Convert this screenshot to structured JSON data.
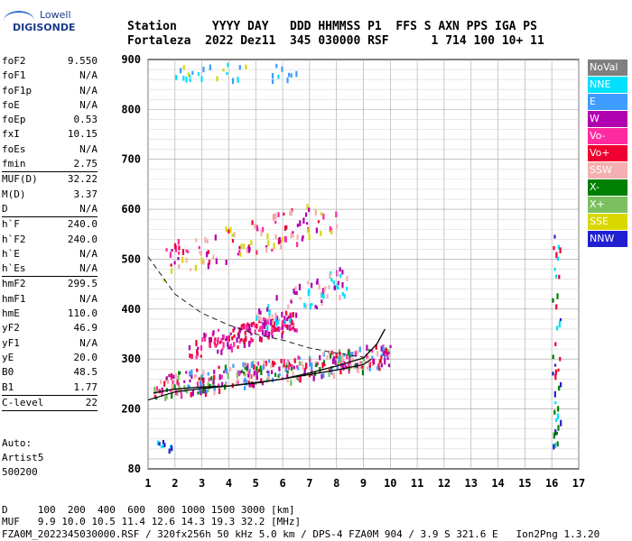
{
  "logo": {
    "line1": "Lowell",
    "line2": "DIGISONDE"
  },
  "header": {
    "row1": "Station     YYYY DAY   DDD HHMMSS P1  FFS S AXN PPS IGA PS",
    "row2": "Fortaleza  2022 Dez11  345 030000 RSF      1 714 100 10+ 11"
  },
  "params": [
    {
      "k": "foF2",
      "v": "9.550"
    },
    {
      "k": "foF1",
      "v": "N/A"
    },
    {
      "k": "foF1p",
      "v": "N/A"
    },
    {
      "k": "foE",
      "v": "N/A"
    },
    {
      "k": "foEp",
      "v": "0.53"
    },
    {
      "k": "fxI",
      "v": "10.15"
    },
    {
      "k": "foEs",
      "v": "N/A"
    },
    {
      "k": "fmin",
      "v": "2.75",
      "sep": true
    },
    {
      "k": "MUF(D)",
      "v": "32.22"
    },
    {
      "k": "M(D)",
      "v": "3.37"
    },
    {
      "k": "D",
      "v": "N/A",
      "sep": true
    },
    {
      "k": "h`F",
      "v": "240.0"
    },
    {
      "k": "h`F2",
      "v": "240.0"
    },
    {
      "k": "h`E",
      "v": "N/A"
    },
    {
      "k": "h`Es",
      "v": "N/A",
      "sep": true
    },
    {
      "k": "hmF2",
      "v": "299.5"
    },
    {
      "k": "hmF1",
      "v": "N/A"
    },
    {
      "k": "hmE",
      "v": "110.0"
    },
    {
      "k": "yF2",
      "v": "46.9"
    },
    {
      "k": "yF1",
      "v": "N/A"
    },
    {
      "k": "yE",
      "v": "20.0"
    },
    {
      "k": "B0",
      "v": "48.5"
    },
    {
      "k": "B1",
      "v": "1.77",
      "sep": true
    },
    {
      "k": "C-level",
      "v": "22",
      "sep": true
    }
  ],
  "tail": {
    "l1": "Auto:",
    "l2": "Artist5",
    "l3": "500200"
  },
  "legend": [
    {
      "label": "NoVal",
      "color": "#808080"
    },
    {
      "label": "NNE",
      "color": "#00e0ff"
    },
    {
      "label": "E",
      "color": "#3f9cff"
    },
    {
      "label": "W",
      "color": "#b000b0"
    },
    {
      "label": "Vo-",
      "color": "#ff2aa0"
    },
    {
      "label": "Vo+",
      "color": "#ee0030"
    },
    {
      "label": "SSW",
      "color": "#f4b0b0"
    },
    {
      "label": "X-",
      "color": "#008000"
    },
    {
      "label": "X+",
      "color": "#7bc060"
    },
    {
      "label": "SSE",
      "color": "#d8d800"
    },
    {
      "label": "NNW",
      "color": "#2020d0"
    }
  ],
  "bottom": {
    "b1": "D     100  200  400  600  800 1000 1500 3000 [km]",
    "b2": "MUF   9.9 10.0 10.5 11.4 12.6 14.3 19.3 32.2 [MHz]",
    "b3": "FZA0M_2022345030000.RSF / 320fx256h 50 kHz 5.0 km / DPS-4 FZA0M 904 / 3.9 S 321.6 E   Ion2Png 1.3.20"
  },
  "chart_data": {
    "type": "scatter",
    "xlim": [
      1,
      17
    ],
    "ylim": [
      80,
      900
    ],
    "x_ticks": [
      1,
      2,
      3,
      4,
      5,
      6,
      7,
      8,
      9,
      10,
      11,
      12,
      13,
      14,
      15,
      16,
      17
    ],
    "y_ticks": [
      80,
      200,
      300,
      400,
      500,
      600,
      700,
      800,
      900
    ],
    "grid": true,
    "trace_ordinary": [
      [
        1.2,
        232
      ],
      [
        2,
        240
      ],
      [
        3,
        244
      ],
      [
        4,
        246
      ],
      [
        5,
        252
      ],
      [
        6,
        260
      ],
      [
        7,
        272
      ],
      [
        8,
        286
      ],
      [
        9,
        302
      ],
      [
        9.5,
        330
      ],
      [
        9.8,
        360
      ]
    ],
    "profile_line": [
      [
        1.0,
        218
      ],
      [
        2,
        234
      ],
      [
        3,
        241
      ],
      [
        4,
        246
      ],
      [
        5,
        253
      ],
      [
        6,
        260
      ],
      [
        7,
        269
      ],
      [
        8,
        278
      ],
      [
        9,
        289
      ],
      [
        9.3,
        300
      ]
    ],
    "dashed_line": [
      [
        1.0,
        505
      ],
      [
        2,
        430
      ],
      [
        3,
        392
      ],
      [
        4,
        368
      ],
      [
        5,
        350
      ],
      [
        6,
        338
      ],
      [
        7,
        322
      ],
      [
        8,
        312
      ],
      [
        9,
        304
      ]
    ],
    "echo_regions": [
      {
        "x": [
          1.2,
          10.0
        ],
        "y": [
          220,
          330
        ],
        "count": 350,
        "colors": [
          "#ee0030",
          "#008000",
          "#3f9cff",
          "#ff2aa0",
          "#7bc060",
          "#f4b0b0",
          "#b000b0"
        ]
      },
      {
        "x": [
          2.5,
          6.5
        ],
        "y": [
          300,
          400
        ],
        "count": 160,
        "colors": [
          "#b000b0",
          "#ff2aa0",
          "#ee0030"
        ]
      },
      {
        "x": [
          1.5,
          8.0
        ],
        "y": [
          460,
          620
        ],
        "count": 120,
        "colors": [
          "#d8d800",
          "#f4b0b0",
          "#ff2aa0",
          "#b000b0",
          "#ee0030"
        ]
      },
      {
        "x": [
          5.0,
          8.5
        ],
        "y": [
          350,
          490
        ],
        "count": 80,
        "colors": [
          "#f4b0b0",
          "#00e0ff",
          "#b000b0"
        ]
      },
      {
        "x": [
          2.0,
          6.5
        ],
        "y": [
          860,
          900
        ],
        "count": 30,
        "colors": [
          "#d8d800",
          "#3f9cff",
          "#00e0ff"
        ]
      },
      {
        "x": [
          16.0,
          16.3
        ],
        "y": [
          90,
          560
        ],
        "count": 40,
        "colors": [
          "#2020d0",
          "#ee0030",
          "#00e0ff",
          "#008000"
        ]
      },
      {
        "x": [
          1.3,
          2.0
        ],
        "y": [
          120,
          140
        ],
        "count": 10,
        "colors": [
          "#2020d0",
          "#00e0ff"
        ]
      }
    ]
  }
}
